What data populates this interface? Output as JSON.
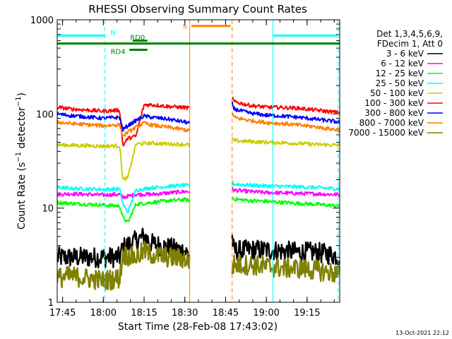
{
  "chart_data": {
    "type": "line",
    "title": "RHESSI Observing Summary Count Rates",
    "xlabel": "Start Time (28-Feb-08 17:43:02)",
    "ylabel": "Count Rate (s⁻¹ detector⁻¹)",
    "ylabel_base": "Count Rate (s",
    "ylabel_exp1": "−1",
    "ylabel_mid": " detector",
    "ylabel_exp2": "−1",
    "ylabel_end": ")",
    "yscale": "log",
    "xlim": [
      17.717,
      19.45
    ],
    "ylim": [
      1,
      1000
    ],
    "x_ticks": [
      {
        "value": 17.75,
        "label": "17:45"
      },
      {
        "value": 18.0,
        "label": "18:00"
      },
      {
        "value": 18.25,
        "label": "18:15"
      },
      {
        "value": 18.5,
        "label": "18:30"
      },
      {
        "value": 18.75,
        "label": "18:45"
      },
      {
        "value": 19.0,
        "label": "19:00"
      },
      {
        "value": 19.25,
        "label": "19:15"
      }
    ],
    "y_ticks": [
      {
        "value": 1,
        "label": "1"
      },
      {
        "value": 10,
        "label": "10"
      },
      {
        "value": 100,
        "label": "100"
      },
      {
        "value": 1000,
        "label": "1000"
      }
    ],
    "legend_header": [
      "Det 1,3,4,5,6,9,",
      "FDecim 1, Att 0"
    ],
    "legend_position": "right",
    "segments": [
      {
        "x_start": 17.717,
        "x_end": 18.53
      },
      {
        "x_start": 18.79,
        "x_end": 19.45
      }
    ],
    "series": [
      {
        "name": "3 - 6 keV",
        "color": "#000000",
        "x": [
          17.717,
          17.8,
          17.9,
          18.0,
          18.1,
          18.12,
          18.2,
          18.25,
          18.3,
          18.4,
          18.5,
          18.53,
          18.79,
          18.8,
          18.9,
          19.0,
          19.1,
          19.2,
          19.3,
          19.45
        ],
        "values": [
          3.0,
          3.0,
          3.0,
          3.0,
          3.0,
          3.8,
          4.5,
          5.0,
          4.2,
          3.8,
          3.5,
          3.2,
          5.0,
          3.5,
          3.6,
          3.6,
          3.5,
          3.4,
          3.4,
          3.1
        ]
      },
      {
        "name": "6 - 12 keV",
        "color": "#ff00ff",
        "x": [
          17.717,
          17.8,
          17.9,
          18.0,
          18.1,
          18.12,
          18.2,
          18.3,
          18.4,
          18.5,
          18.53,
          18.79,
          18.8,
          18.9,
          19.0,
          19.1,
          19.2,
          19.3,
          19.45
        ],
        "values": [
          14.0,
          14.2,
          14.0,
          13.8,
          14.0,
          13.0,
          14.0,
          14.0,
          14.5,
          15.0,
          15.0,
          16.0,
          15.5,
          15.0,
          14.6,
          14.5,
          14.3,
          14.2,
          13.9
        ]
      },
      {
        "name": "12 - 25 keV",
        "color": "#00ff00",
        "x": [
          17.717,
          17.8,
          17.9,
          18.0,
          18.1,
          18.12,
          18.15,
          18.2,
          18.3,
          18.4,
          18.5,
          18.53,
          18.79,
          18.8,
          18.9,
          19.0,
          19.1,
          19.2,
          19.3,
          19.45
        ],
        "values": [
          11.5,
          11.2,
          11.0,
          10.8,
          10.5,
          8.0,
          7.0,
          11.0,
          11.5,
          12.0,
          12.3,
          12.0,
          13.0,
          12.5,
          12.0,
          11.8,
          11.5,
          11.2,
          11.0,
          10.5
        ]
      },
      {
        "name": "25 - 50 keV",
        "color": "#00ffff",
        "x": [
          17.717,
          17.8,
          17.9,
          18.0,
          18.1,
          18.12,
          18.15,
          18.2,
          18.3,
          18.4,
          18.5,
          18.53,
          18.79,
          18.8,
          18.9,
          19.0,
          19.1,
          19.2,
          19.3,
          19.45
        ],
        "values": [
          16.5,
          16.2,
          16.0,
          15.8,
          16.0,
          11.0,
          9.0,
          15.5,
          16.5,
          17.0,
          17.5,
          17.0,
          19.0,
          18.0,
          17.5,
          17.2,
          17.0,
          16.8,
          16.5,
          16.0
        ]
      },
      {
        "name": "50 - 100 keV",
        "color": "#cccc00",
        "x": [
          17.717,
          17.8,
          17.9,
          18.0,
          18.1,
          18.12,
          18.15,
          18.2,
          18.3,
          18.4,
          18.5,
          18.53,
          18.79,
          18.8,
          18.9,
          19.0,
          19.1,
          19.2,
          19.3,
          19.45
        ],
        "values": [
          47.0,
          46.5,
          46.0,
          45.5,
          46.0,
          20.0,
          21.0,
          48.0,
          49.0,
          48.0,
          47.5,
          46.5,
          55.0,
          52.0,
          51.0,
          50.0,
          49.5,
          48.5,
          47.5,
          46.5
        ]
      },
      {
        "name": "100 - 300 keV",
        "color": "#ff0000",
        "x": [
          17.717,
          17.8,
          17.9,
          18.0,
          18.1,
          18.12,
          18.15,
          18.2,
          18.25,
          18.3,
          18.4,
          18.5,
          18.53,
          18.79,
          18.8,
          18.9,
          19.0,
          19.1,
          19.2,
          19.3,
          19.45
        ],
        "values": [
          118.0,
          113.0,
          110.0,
          107.0,
          110.0,
          46.0,
          55.0,
          58.0,
          125.0,
          125.0,
          120.0,
          117.0,
          115.0,
          155.0,
          135.0,
          123.0,
          118.0,
          117.0,
          115.0,
          110.0,
          103.0
        ]
      },
      {
        "name": "300 - 800 keV",
        "color": "#0000ff",
        "x": [
          17.717,
          17.8,
          17.9,
          18.0,
          18.1,
          18.12,
          18.15,
          18.2,
          18.25,
          18.3,
          18.4,
          18.5,
          18.53,
          18.79,
          18.8,
          18.9,
          19.0,
          19.1,
          19.2,
          19.3,
          19.45
        ],
        "values": [
          100.0,
          96.0,
          93.0,
          90.0,
          92.0,
          68.0,
          75.0,
          85.0,
          95.0,
          92.0,
          88.0,
          82.0,
          80.0,
          130.0,
          113.0,
          102.0,
          97.0,
          95.0,
          92.0,
          88.0,
          82.0
        ]
      },
      {
        "name": "800 - 7000 keV",
        "color": "#ff8000",
        "x": [
          17.717,
          17.8,
          17.9,
          18.0,
          18.1,
          18.12,
          18.15,
          18.2,
          18.25,
          18.3,
          18.4,
          18.5,
          18.53,
          18.79,
          18.8,
          18.9,
          19.0,
          19.1,
          19.2,
          19.3,
          19.45
        ],
        "values": [
          82.0,
          79.0,
          77.0,
          75.0,
          77.0,
          58.0,
          64.0,
          72.0,
          80.0,
          76.0,
          72.0,
          68.0,
          66.0,
          105.0,
          92.0,
          85.0,
          81.0,
          79.0,
          76.0,
          73.0,
          67.0
        ]
      },
      {
        "name": "7000 - 15000 keV",
        "color": "#808000",
        "x": [
          17.717,
          17.8,
          17.9,
          18.0,
          18.1,
          18.12,
          18.2,
          18.25,
          18.3,
          18.4,
          18.5,
          18.53,
          18.79,
          18.8,
          18.9,
          19.0,
          19.1,
          19.2,
          19.3,
          19.45
        ],
        "values": [
          1.8,
          1.9,
          1.8,
          1.7,
          1.8,
          3.2,
          3.0,
          3.5,
          3.2,
          3.0,
          2.9,
          2.6,
          2.4,
          2.5,
          2.5,
          2.4,
          2.3,
          2.3,
          2.2,
          2.0
        ]
      }
    ],
    "vertical_markers": [
      {
        "x": 17.717,
        "color": "#00ffff",
        "style": "solid"
      },
      {
        "x": 18.01,
        "color": "#00ffff",
        "style": "dashed"
      },
      {
        "x": 18.53,
        "color": "#ff8000",
        "style": "solid"
      },
      {
        "x": 18.79,
        "color": "#ff8000",
        "style": "dashed"
      },
      {
        "x": 19.04,
        "color": "#00ffff",
        "style": "solid"
      },
      {
        "x": 19.44,
        "color": "#00ffff",
        "style": "dashed"
      }
    ],
    "flag_bars": [
      {
        "label": "N",
        "color": "#00ffff",
        "y": 680,
        "ranges": [
          [
            17.717,
            18.01
          ],
          [
            19.04,
            19.44
          ]
        ]
      },
      {
        "label": "S",
        "color": "#ff8000",
        "y": 860,
        "ranges": [
          [
            18.54,
            18.78
          ]
        ]
      },
      {
        "label": "",
        "color": "#008000",
        "y": 560,
        "ranges": [
          [
            17.717,
            19.45
          ]
        ]
      },
      {
        "label": "RD0",
        "color": "#008000",
        "y": 600,
        "ranges": [
          [
            18.18,
            18.27
          ]
        ]
      },
      {
        "label": "RD4",
        "color": "#008000",
        "y": 480,
        "ranges": [
          [
            18.16,
            18.27
          ]
        ]
      }
    ],
    "timestamp": "13-Oct-2021 22:12"
  }
}
